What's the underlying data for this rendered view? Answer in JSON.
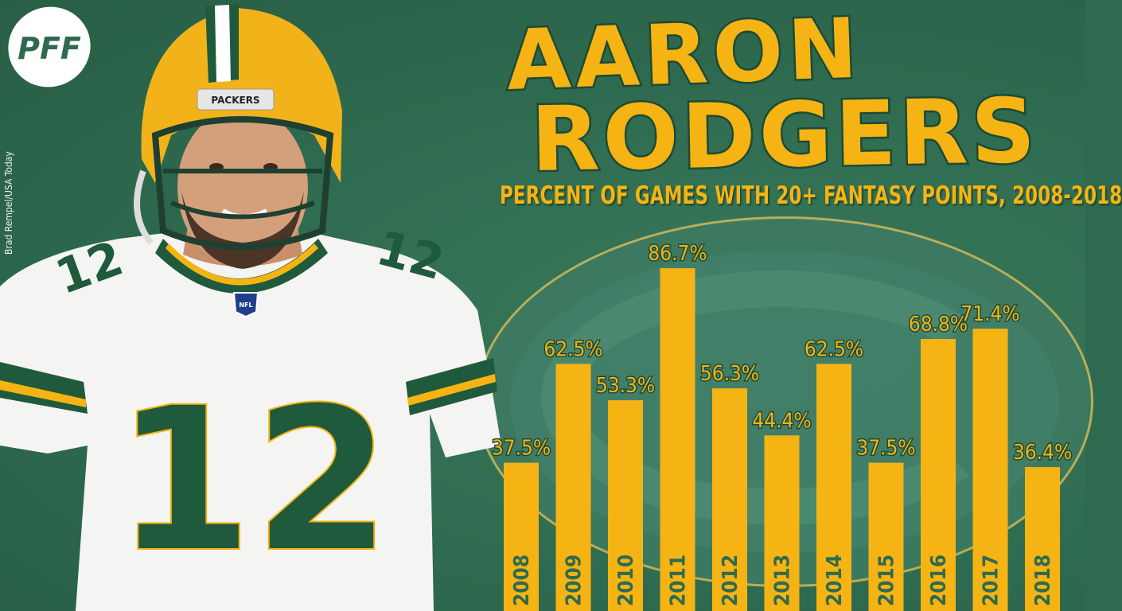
{
  "brand": {
    "logo_text": "PFF"
  },
  "credit": "Brad Rempel/USA Today",
  "title": {
    "line1": "AARON",
    "line2": "RODGERS"
  },
  "colors": {
    "background": "#2e6a4f",
    "gold": "#f5b414",
    "green": "#1f5a3c"
  },
  "player": {
    "helmet_text": "PACKERS",
    "jersey_number": "12",
    "shield_text": "NFL"
  },
  "chart_data": {
    "type": "bar",
    "title": "PERCENT OF GAMES WITH 20+ FANTASY POINTS, 2008-2018",
    "categories": [
      "2008",
      "2009",
      "2010",
      "2011",
      "2012",
      "2013",
      "2014",
      "2015",
      "2016",
      "2017",
      "2018"
    ],
    "values": [
      37.5,
      62.5,
      53.3,
      86.7,
      56.3,
      44.4,
      62.5,
      37.5,
      68.8,
      71.4,
      36.4
    ],
    "value_labels": [
      "37.5%",
      "62.5%",
      "53.3%",
      "86.7%",
      "56.3%",
      "44.4%",
      "62.5%",
      "37.5%",
      "68.8%",
      "71.4%",
      "36.4%"
    ],
    "ylim": [
      0,
      100
    ],
    "grid": false,
    "legend": "none"
  }
}
